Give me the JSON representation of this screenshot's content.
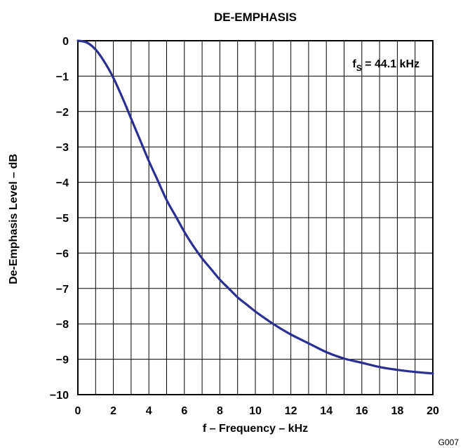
{
  "chart_data": {
    "type": "line",
    "title": "DE-EMPHASIS",
    "xlabel": "f – Frequency – kHz",
    "ylabel": "De-Emphasis Level – dB",
    "xlim": [
      0,
      20
    ],
    "ylim": [
      -10,
      0
    ],
    "x_ticks": [
      0,
      2,
      4,
      6,
      8,
      10,
      12,
      14,
      16,
      18,
      20
    ],
    "x_tick_labels": [
      "0",
      "2",
      "4",
      "6",
      "8",
      "10",
      "12",
      "14",
      "16",
      "18",
      "20"
    ],
    "y_ticks": [
      0,
      -1,
      -2,
      -3,
      -4,
      -5,
      -6,
      -7,
      -8,
      -9,
      -10
    ],
    "y_tick_labels": [
      "0",
      "−1",
      "−2",
      "−3",
      "−4",
      "−5",
      "−6",
      "−7",
      "−8",
      "−9",
      "−10"
    ],
    "x_minor_grid_step": 1,
    "grid": true,
    "annotation": {
      "prefix": "f",
      "subscript": "S",
      "suffix": " = 44.1 kHz"
    },
    "figure_code": "G007",
    "line_color": "#2b2f8f",
    "series": [
      {
        "x": [
          0,
          0.5,
          1,
          1.5,
          2,
          2.5,
          3,
          3.5,
          4,
          4.5,
          5,
          5.5,
          6,
          6.5,
          7,
          7.5,
          8,
          8.5,
          9,
          9.5,
          10,
          11,
          12,
          13,
          14,
          15,
          16,
          17,
          18,
          19,
          20
        ],
        "y": [
          0,
          -0.05,
          -0.25,
          -0.6,
          -1.05,
          -1.6,
          -2.2,
          -2.8,
          -3.4,
          -3.95,
          -4.5,
          -4.95,
          -5.4,
          -5.8,
          -6.15,
          -6.45,
          -6.75,
          -7.0,
          -7.25,
          -7.45,
          -7.65,
          -8.0,
          -8.3,
          -8.55,
          -8.8,
          -8.98,
          -9.1,
          -9.22,
          -9.3,
          -9.36,
          -9.4
        ]
      }
    ]
  }
}
